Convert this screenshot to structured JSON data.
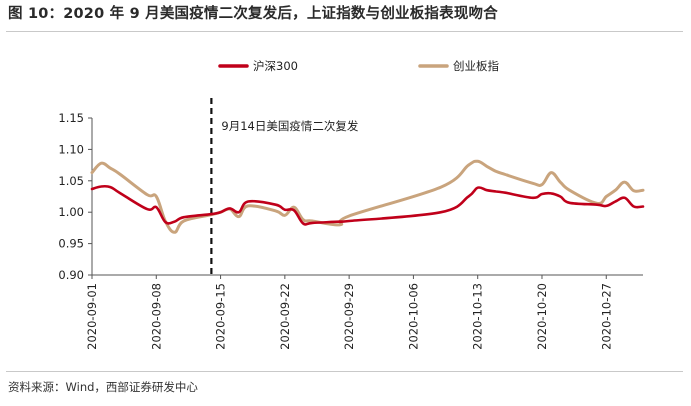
{
  "title": "图 10：2020 年 9 月美国疫情二次复发后，上证指数与创业板指表现吻合",
  "source": "资料来源：Wind，西部证券研发中心",
  "chart_data": {
    "type": "line",
    "x_ticks": [
      "2020-09-01",
      "2020-09-08",
      "2020-09-15",
      "2020-09-22",
      "2020-09-29",
      "2020-10-06",
      "2020-10-13",
      "2020-10-20",
      "2020-10-27"
    ],
    "ylim": [
      0.9,
      1.15
    ],
    "y_ticks": [
      "0.90",
      "0.95",
      "1.00",
      "1.05",
      "1.10",
      "1.15"
    ],
    "x_range": [
      "2020-09-01",
      "2020-10-31"
    ],
    "legend_position": "top",
    "annotation": {
      "label": "9月14日美国疫情二次复发",
      "date": "2020-09-14"
    },
    "series": [
      {
        "name": "沪深300",
        "color": "#c0001a",
        "points": [
          [
            "2020-09-01",
            1.037
          ],
          [
            "2020-09-02",
            1.041
          ],
          [
            "2020-09-03",
            1.04
          ],
          [
            "2020-09-04",
            1.031
          ],
          [
            "2020-09-07",
            1.005
          ],
          [
            "2020-09-08",
            1.008
          ],
          [
            "2020-09-09",
            0.984
          ],
          [
            "2020-09-10",
            0.985
          ],
          [
            "2020-09-11",
            0.992
          ],
          [
            "2020-09-14",
            0.997
          ],
          [
            "2020-09-15",
            1.0
          ],
          [
            "2020-09-16",
            1.006
          ],
          [
            "2020-09-17",
            1.0
          ],
          [
            "2020-09-18",
            1.017
          ],
          [
            "2020-09-21",
            1.012
          ],
          [
            "2020-09-22",
            1.004
          ],
          [
            "2020-09-23",
            1.003
          ],
          [
            "2020-09-24",
            0.982
          ],
          [
            "2020-09-25",
            0.983
          ],
          [
            "2020-09-28",
            0.985
          ],
          [
            "2020-09-29",
            0.986
          ],
          [
            "2020-10-09",
            1.0
          ],
          [
            "2020-10-12",
            1.025
          ],
          [
            "2020-10-13",
            1.039
          ],
          [
            "2020-10-14",
            1.035
          ],
          [
            "2020-10-15",
            1.033
          ],
          [
            "2020-10-16",
            1.031
          ],
          [
            "2020-10-19",
            1.023
          ],
          [
            "2020-10-20",
            1.029
          ],
          [
            "2020-10-21",
            1.03
          ],
          [
            "2020-10-22",
            1.025
          ],
          [
            "2020-10-23",
            1.015
          ],
          [
            "2020-10-26",
            1.012
          ],
          [
            "2020-10-27",
            1.01
          ],
          [
            "2020-10-28",
            1.017
          ],
          [
            "2020-10-29",
            1.023
          ],
          [
            "2020-10-30",
            1.009
          ],
          [
            "2020-10-31",
            1.009
          ]
        ]
      },
      {
        "name": "创业板指",
        "color": "#c9a47d",
        "points": [
          [
            "2020-09-01",
            1.063
          ],
          [
            "2020-09-02",
            1.078
          ],
          [
            "2020-09-03",
            1.07
          ],
          [
            "2020-09-04",
            1.061
          ],
          [
            "2020-09-07",
            1.028
          ],
          [
            "2020-09-08",
            1.025
          ],
          [
            "2020-09-09",
            0.985
          ],
          [
            "2020-09-10",
            0.968
          ],
          [
            "2020-09-11",
            0.986
          ],
          [
            "2020-09-14",
            0.996
          ],
          [
            "2020-09-15",
            1.0
          ],
          [
            "2020-09-16",
            1.005
          ],
          [
            "2020-09-17",
            0.993
          ],
          [
            "2020-09-18",
            1.01
          ],
          [
            "2020-09-21",
            1.002
          ],
          [
            "2020-09-22",
            0.995
          ],
          [
            "2020-09-23",
            1.008
          ],
          [
            "2020-09-24",
            0.988
          ],
          [
            "2020-09-25",
            0.986
          ],
          [
            "2020-09-28",
            0.98
          ],
          [
            "2020-09-29",
            0.994
          ],
          [
            "2020-10-09",
            1.04
          ],
          [
            "2020-10-12",
            1.075
          ],
          [
            "2020-10-13",
            1.081
          ],
          [
            "2020-10-14",
            1.073
          ],
          [
            "2020-10-15",
            1.065
          ],
          [
            "2020-10-16",
            1.06
          ],
          [
            "2020-10-19",
            1.046
          ],
          [
            "2020-10-20",
            1.044
          ],
          [
            "2020-10-21",
            1.063
          ],
          [
            "2020-10-22",
            1.048
          ],
          [
            "2020-10-23",
            1.035
          ],
          [
            "2020-10-26",
            1.014
          ],
          [
            "2020-10-27",
            1.025
          ],
          [
            "2020-10-28",
            1.035
          ],
          [
            "2020-10-29",
            1.048
          ],
          [
            "2020-10-30",
            1.034
          ],
          [
            "2020-10-31",
            1.035
          ]
        ]
      }
    ]
  }
}
